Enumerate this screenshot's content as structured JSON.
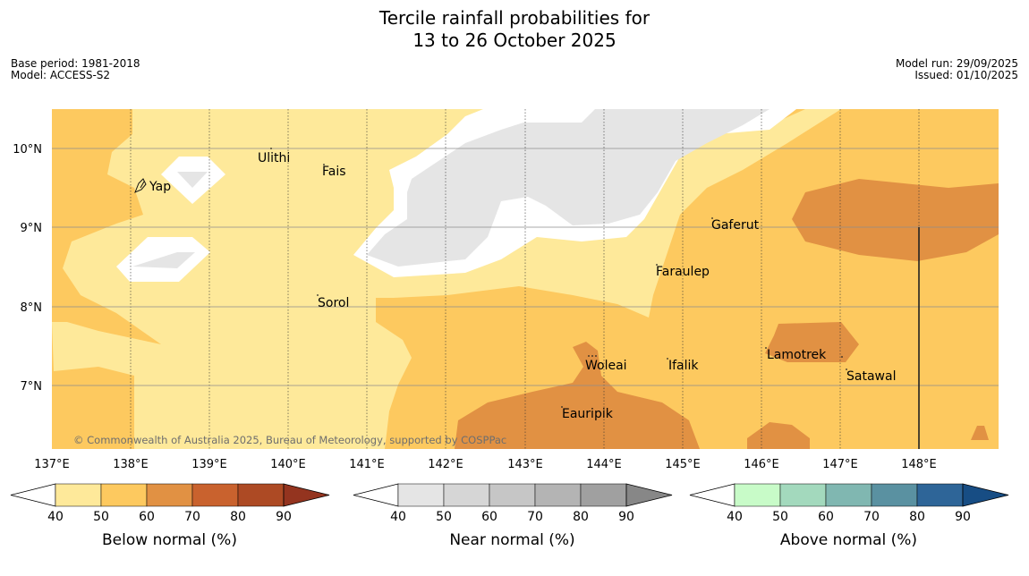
{
  "title": {
    "line1": "Tercile rainfall probabilities for",
    "line2": "13 to 26 October 2025"
  },
  "meta": {
    "base_period": "Base period: 1981-2018",
    "model": "Model: ACCESS-S2",
    "model_run": "Model run: 29/09/2025",
    "issued": "Issued: 01/10/2025"
  },
  "copyright": "© Commonwealth of Australia 2025, Bureau of Meteorology, supported by COSPPac",
  "axes": {
    "x_ticks": [
      "137°E",
      "138°E",
      "139°E",
      "140°E",
      "141°E",
      "142°E",
      "143°E",
      "144°E",
      "145°E",
      "146°E",
      "147°E",
      "148°E"
    ],
    "y_ticks": [
      "10°N",
      "9°N",
      "8°N",
      "7°N"
    ]
  },
  "places": [
    {
      "name": "Yap"
    },
    {
      "name": "Ulithi"
    },
    {
      "name": "Fais"
    },
    {
      "name": "Gaferut"
    },
    {
      "name": "Faraulep"
    },
    {
      "name": "Sorol"
    },
    {
      "name": "Woleai"
    },
    {
      "name": "Ifalik"
    },
    {
      "name": "Lamotrek"
    },
    {
      "name": "Satawal"
    },
    {
      "name": "Eauripik"
    }
  ],
  "legends": [
    {
      "title": "Below normal (%)",
      "ticks": [
        "40",
        "50",
        "60",
        "70",
        "80",
        "90"
      ],
      "colors": [
        "#fee99a",
        "#fdc95f",
        "#e19143",
        "#c9622e",
        "#ad4a24",
        "#94341f"
      ]
    },
    {
      "title": "Near normal (%)",
      "ticks": [
        "40",
        "50",
        "60",
        "70",
        "80",
        "90"
      ],
      "colors": [
        "#e5e5e5",
        "#d6d6d6",
        "#c6c6c6",
        "#b4b4b4",
        "#a0a0a0",
        "#878787"
      ]
    },
    {
      "title": "Above normal (%)",
      "ticks": [
        "40",
        "50",
        "60",
        "70",
        "80",
        "90"
      ],
      "colors": [
        "#c8fbc8",
        "#a3d9bd",
        "#80b7b1",
        "#5a91a1",
        "#2e6598",
        "#174d84"
      ]
    }
  ]
}
